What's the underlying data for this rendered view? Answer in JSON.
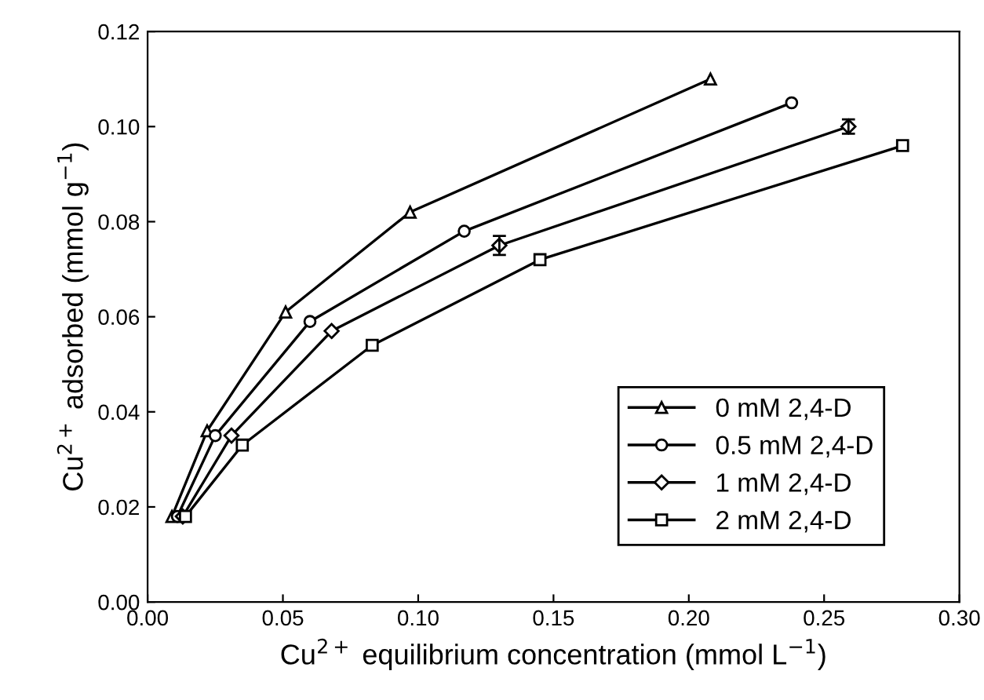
{
  "chart_data": {
    "type": "line",
    "xlabel": "Cu$^{2+}$ equilibrium concentration (mmol L$^{−1}$)",
    "ylabel": "Cu$^{2+}$ adsorbed (mmol g$^{−1}$)",
    "xlim": [
      0,
      0.3
    ],
    "ylim": [
      0,
      0.12
    ],
    "xticks": [
      {
        "value": 0,
        "label": "0.00"
      },
      {
        "value": 0.05,
        "label": "0.05"
      },
      {
        "value": 0.1,
        "label": "0.10"
      },
      {
        "value": 0.15,
        "label": "0.15"
      },
      {
        "value": 0.2,
        "label": "0.20"
      },
      {
        "value": 0.25,
        "label": "0.25"
      },
      {
        "value": 0.3,
        "label": "0.30"
      }
    ],
    "yticks": [
      {
        "value": 0,
        "label": "0.00"
      },
      {
        "value": 0.02,
        "label": "0.02"
      },
      {
        "value": 0.04,
        "label": "0.04"
      },
      {
        "value": 0.06,
        "label": "0.06"
      },
      {
        "value": 0.08,
        "label": "0.08"
      },
      {
        "value": 0.1,
        "label": "0.10"
      },
      {
        "value": 0.12,
        "label": "0.12"
      }
    ],
    "grid": false,
    "legend": "bottom right",
    "line_style": "solid",
    "series": [
      {
        "name": "0 mM 2,4-D",
        "color": "#000000",
        "marker": "triangle",
        "x": [
          0.009,
          0.022,
          0.051,
          0.097,
          0.208
        ],
        "values": [
          0.018,
          0.036,
          0.061,
          0.082,
          0.11
        ]
      },
      {
        "name": "0.5 mM 2,4-D",
        "color": "#000000",
        "marker": "circle",
        "x": [
          0.011,
          0.025,
          0.06,
          0.117,
          0.238
        ],
        "values": [
          0.018,
          0.035,
          0.059,
          0.078,
          0.105
        ]
      },
      {
        "name": "1 mM 2,4-D",
        "color": "#000000",
        "marker": "diamond",
        "x": [
          0.013,
          0.031,
          0.068,
          0.13,
          0.259
        ],
        "values": [
          0.018,
          0.035,
          0.057,
          0.075,
          0.1
        ],
        "errors": [
          null,
          null,
          null,
          0.002,
          0.0015
        ]
      },
      {
        "name": "2 mM 2,4-D",
        "color": "#000000",
        "marker": "square",
        "x": [
          0.014,
          0.035,
          0.083,
          0.145,
          0.279
        ],
        "values": [
          0.018,
          0.033,
          0.054,
          0.072,
          0.096
        ]
      }
    ]
  }
}
